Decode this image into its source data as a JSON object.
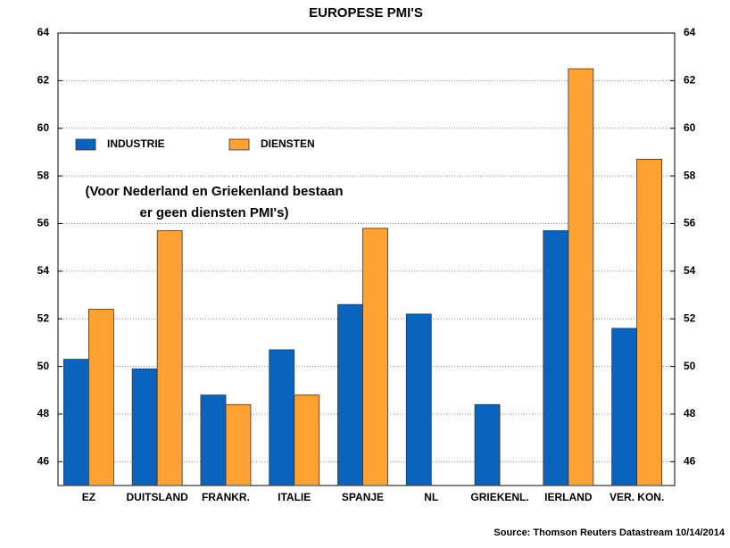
{
  "chart_data": {
    "type": "bar",
    "title": "EUROPESE PMI'S",
    "categories": [
      "EZ",
      "DUITSLAND",
      "FRANKR.",
      "ITALIE",
      "SPANJE",
      "NL",
      "GRIEKENL.",
      "IERLAND",
      "VER. KON."
    ],
    "series": [
      {
        "name": "INDUSTRIE",
        "color": "#0a63bd",
        "values": [
          50.3,
          49.9,
          48.8,
          50.7,
          52.6,
          52.2,
          48.4,
          55.7,
          51.6
        ]
      },
      {
        "name": "DIENSTEN",
        "color": "#ffa133",
        "values": [
          52.4,
          55.7,
          48.4,
          48.8,
          55.8,
          null,
          null,
          62.5,
          58.7
        ]
      }
    ],
    "ylim": [
      45,
      64
    ],
    "yticks": [
      46,
      48,
      50,
      52,
      54,
      56,
      58,
      60,
      62,
      64
    ],
    "grid": true,
    "annotation": [
      "(Voor Nederland en Griekenland bestaan",
      "er geen diensten PMI's)"
    ],
    "source": "Source: Thomson Reuters Datastream   10/14/2014"
  }
}
